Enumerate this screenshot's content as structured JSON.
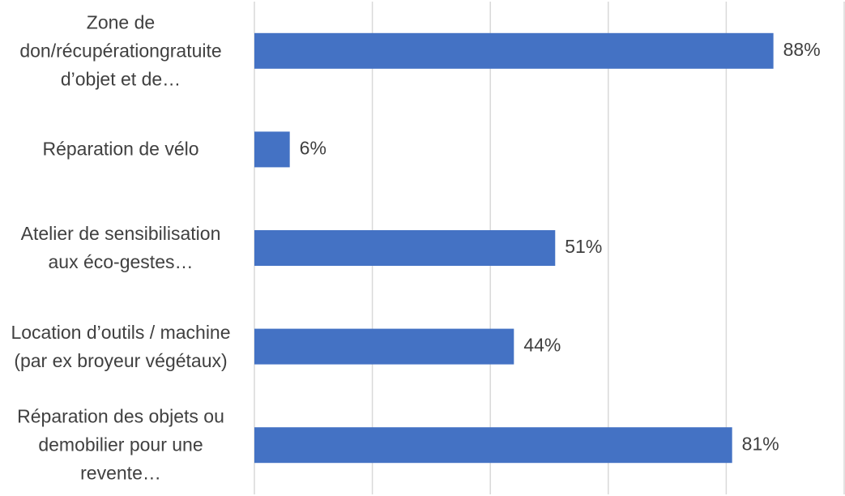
{
  "chart_data": {
    "type": "bar",
    "orientation": "horizontal",
    "categories": [
      "Zone de don/récupérationgratuite d’objet et de…",
      "Réparation de vélo",
      "Atelier de sensibilisation aux éco-gestes…",
      "Location d’outils / machine (par ex broyeur végétaux)",
      "Réparation des objets ou demobilier pour une revente…"
    ],
    "values": [
      88,
      6,
      51,
      44,
      81
    ],
    "value_labels": [
      "88%",
      "6%",
      "51%",
      "44%",
      "81%"
    ],
    "color": "#4472c4",
    "xlim": [
      0,
      100
    ],
    "xticks": [
      0,
      20,
      40,
      60,
      80,
      100
    ],
    "grid": true
  }
}
